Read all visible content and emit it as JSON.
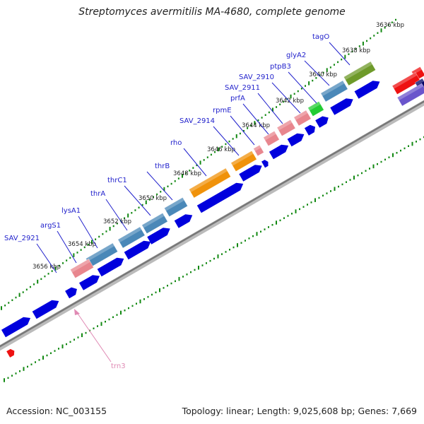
{
  "header": {
    "title": "Streptomyces avermitilis MA-4680, complete genome"
  },
  "footer": {
    "accession": "Accession: NC_003155",
    "summary": "Topology: linear; Length: 9,025,608 bp; Genes: 7,669"
  },
  "kbp_labels": [
    "3636 kbp",
    "3638 kbp",
    "3640 kbp",
    "3642 kbp",
    "3644 kbp",
    "3646 kbp",
    "3648 kbp",
    "3650 kbp",
    "3652 kbp",
    "3654 kbp",
    "3656 kbp"
  ],
  "gene_labels": [
    "tagO",
    "glyA2",
    "ptpB3",
    "SAV_2910",
    "SAV_2911",
    "prfA",
    "rpmE",
    "SAV_2914",
    "rho",
    "thrB",
    "thrC1",
    "thrA",
    "lysA1",
    "argS1",
    "SAV_2921",
    "trn3"
  ],
  "colors": {
    "cds": "#0000dd",
    "label_blue": "#2222cc",
    "label_pink": "#e08ab4",
    "tick_green": "#118811",
    "backbone": "#999999",
    "steel_blue": "#4a88b8",
    "salmon": "#e8868e",
    "orange": "#f0920a",
    "green": "#22cc33",
    "olive": "#6e9a2a",
    "red": "#ee1111",
    "purple": "#6a55cc",
    "navy": "#000066"
  }
}
